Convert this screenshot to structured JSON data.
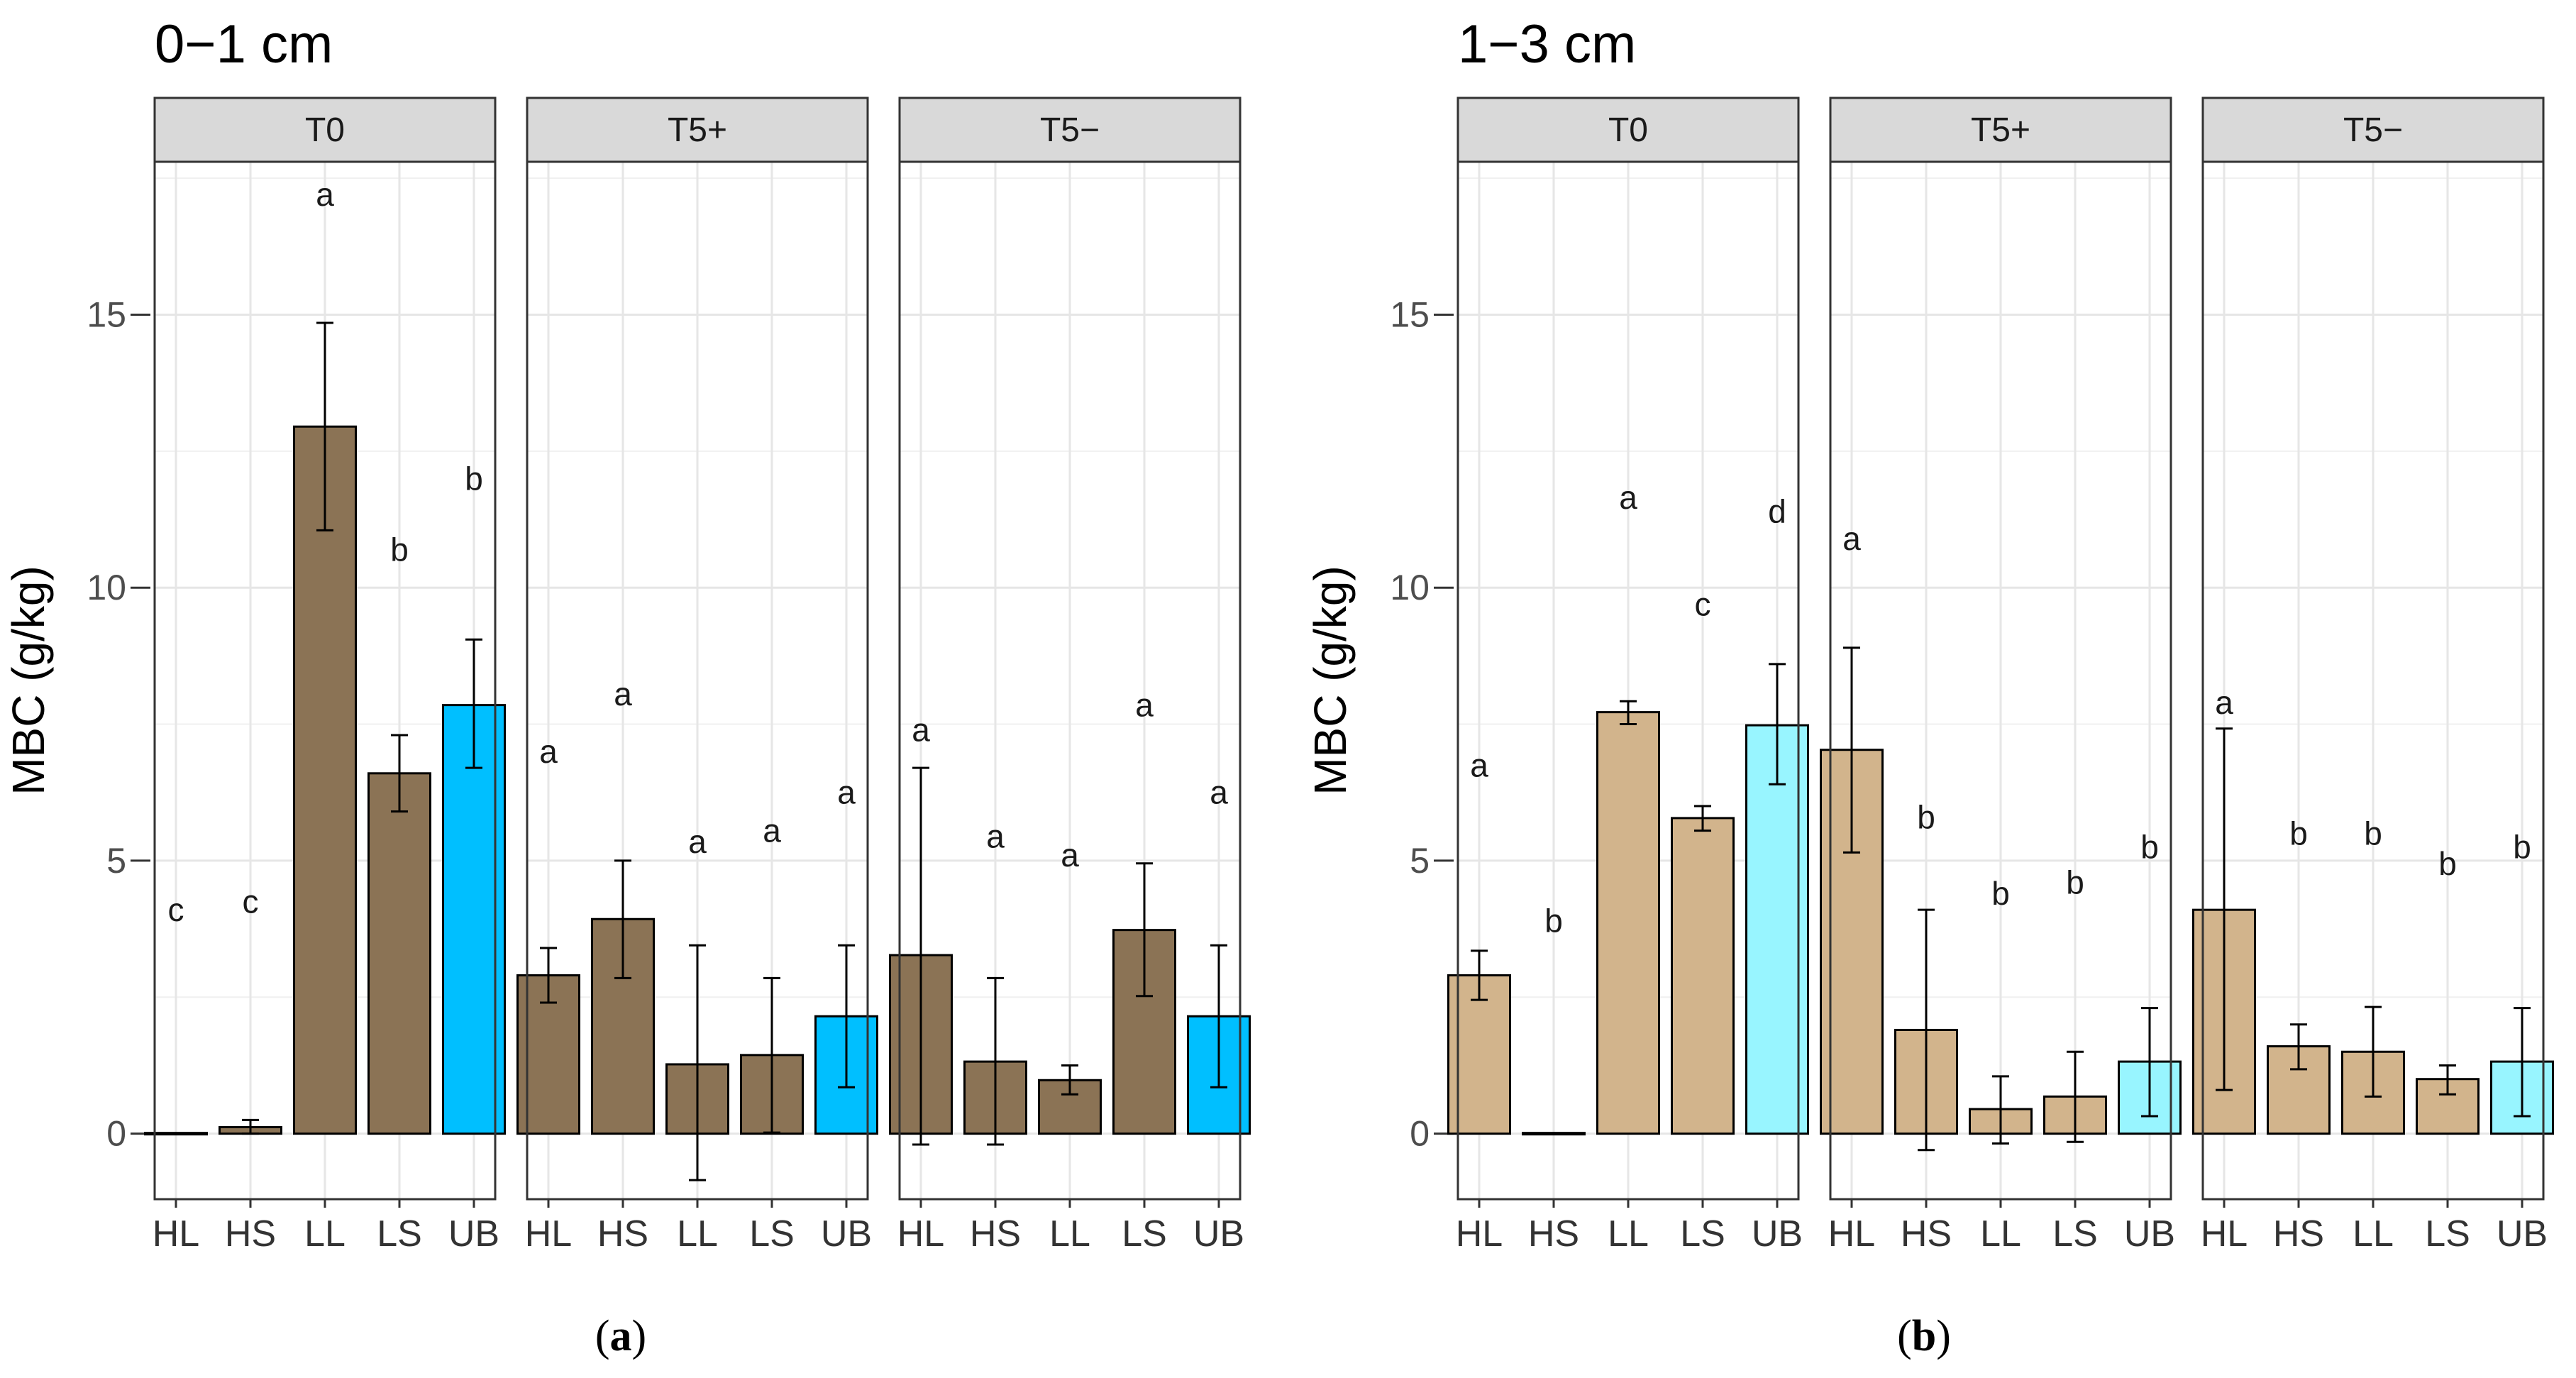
{
  "chart_data": [
    {
      "type": "bar",
      "title": "0−1 cm",
      "ylabel": "MBC (g/kg)",
      "xlabel": "",
      "ylim": [
        -1.2,
        17.8
      ],
      "yticks": [
        0,
        5,
        10,
        15
      ],
      "caption": "a",
      "categories": [
        "HL",
        "HS",
        "LL",
        "LS",
        "UB"
      ],
      "colors": {
        "default": "#8b7355",
        "UB": "#00bfff"
      },
      "facets": [
        {
          "label": "T0",
          "values": [
            0.0,
            0.12,
            12.95,
            6.6,
            7.85
          ],
          "err_low": [
            0.0,
            0.0,
            11.05,
            5.9,
            6.7
          ],
          "err_high": [
            0.0,
            0.25,
            14.85,
            7.3,
            9.05
          ],
          "letters": [
            "c",
            "c",
            "a",
            "b",
            "b"
          ],
          "letter_y": [
            4.1,
            4.25,
            17.2,
            10.7,
            12.0
          ]
        },
        {
          "label": "T5+",
          "values": [
            2.9,
            3.93,
            1.27,
            1.44,
            2.15
          ],
          "err_low": [
            2.4,
            2.85,
            -0.85,
            0.02,
            0.85
          ],
          "err_high": [
            3.4,
            5.0,
            3.45,
            2.85,
            3.45
          ],
          "letters": [
            "a",
            "a",
            "a",
            "a",
            "a"
          ],
          "letter_y": [
            7.0,
            8.05,
            5.35,
            5.55,
            6.25
          ]
        },
        {
          "label": "T5−",
          "values": [
            3.27,
            1.32,
            0.98,
            3.73,
            2.15
          ],
          "err_low": [
            -0.2,
            -0.2,
            0.72,
            2.52,
            0.85
          ],
          "err_high": [
            6.7,
            2.85,
            1.25,
            4.95,
            3.45
          ],
          "letters": [
            "a",
            "a",
            "a",
            "a",
            "a"
          ],
          "letter_y": [
            7.4,
            5.45,
            5.1,
            7.85,
            6.25
          ]
        }
      ]
    },
    {
      "type": "bar",
      "title": "1−3 cm",
      "ylabel": "MBC (g/kg)",
      "xlabel": "",
      "ylim": [
        -1.2,
        17.8
      ],
      "yticks": [
        0,
        5,
        10,
        15
      ],
      "caption": "b",
      "categories": [
        "HL",
        "HS",
        "LL",
        "LS",
        "UB"
      ],
      "colors": {
        "default": "#d2b48c",
        "UB": "#98f5ff"
      },
      "facets": [
        {
          "label": "T0",
          "values": [
            2.9,
            0.0,
            7.72,
            5.78,
            7.48
          ],
          "err_low": [
            2.45,
            0.0,
            7.5,
            5.55,
            6.4
          ],
          "err_high": [
            3.35,
            0.0,
            7.92,
            6.0,
            8.6
          ],
          "letters": [
            "a",
            "b",
            "a",
            "c",
            "d"
          ],
          "letter_y": [
            6.75,
            3.9,
            11.65,
            9.7,
            11.4
          ]
        },
        {
          "label": "T5+",
          "values": [
            7.03,
            1.9,
            0.45,
            0.68,
            1.32
          ],
          "err_low": [
            5.15,
            -0.3,
            -0.18,
            -0.15,
            0.32
          ],
          "err_high": [
            8.9,
            4.1,
            1.05,
            1.5,
            2.3
          ],
          "letters": [
            "a",
            "b",
            "b",
            "b",
            "b"
          ],
          "letter_y": [
            10.9,
            5.8,
            4.4,
            4.6,
            5.25
          ]
        },
        {
          "label": "T5−",
          "values": [
            4.1,
            1.6,
            1.5,
            1.0,
            1.32
          ],
          "err_low": [
            0.8,
            1.18,
            0.68,
            0.72,
            0.32
          ],
          "err_high": [
            7.42,
            2.0,
            2.32,
            1.25,
            2.3
          ],
          "letters": [
            "a",
            "b",
            "b",
            "b",
            "b"
          ],
          "letter_y": [
            7.9,
            5.5,
            5.5,
            4.95,
            5.25
          ]
        }
      ]
    }
  ]
}
